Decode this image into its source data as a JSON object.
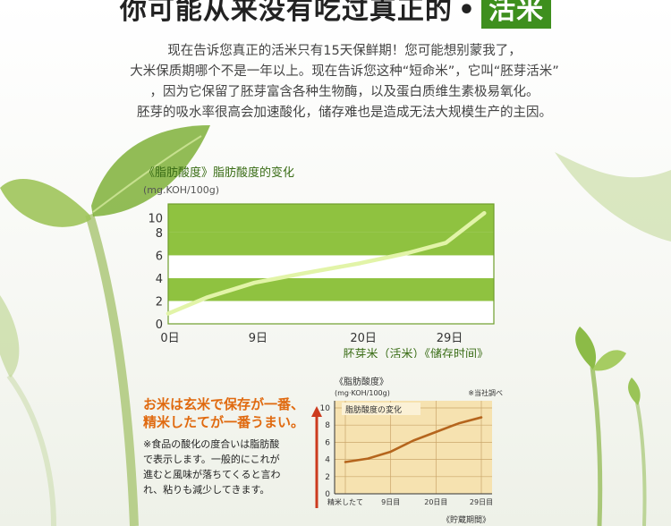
{
  "title": {
    "main": "你可能从来没有吃过真正的",
    "dot": "•",
    "highlight": "活米"
  },
  "paragraph": [
    "现在告诉您真正的活米只有15天保鲜期！您可能想别蒙我了，",
    "大米保质期哪个不是一年以上。现在告诉您这种“短命米”，它叫“胚芽活米”",
    "，因为它保留了胚芽富含各种生物酶，以及蛋白质维生素极易氧化。",
    "胚芽的吸水率很高会加速酸化，储存难也是造成无法大规模生产的主因。"
  ],
  "chart_top": {
    "title": "《脂肪酸度》脂肪酸度的变化",
    "unit": "(mg.KOH/100g)"
  },
  "japanese": {
    "headline": [
      "お米は玄米で保存が一番、",
      "精米したてが一番うまい。"
    ],
    "body": [
      "※食品の酸化の度合いは脂肪酸",
      "で表示します。一般的にこれが",
      "進むと風味が落ちてくると言わ",
      "れ、粘りも減少してきます。"
    ]
  },
  "chart_data": [
    {
      "type": "line",
      "title": "《脂肪酸度》脂肪酸度的变化",
      "ylabel": "(mg.KOH/100g)",
      "xlabel": "胚芽米（活米）《储存时间》",
      "x_categories": [
        "0日",
        "9日",
        "20日",
        "29日"
      ],
      "x": [
        0,
        9,
        20,
        29
      ],
      "y_ticks": [
        0,
        2,
        4,
        6,
        8,
        10
      ],
      "ylim": [
        0,
        10.5
      ],
      "xlim": [
        0,
        34
      ],
      "series": [
        {
          "x": [
            0,
            4,
            9,
            14,
            20,
            25,
            29,
            33
          ],
          "values": [
            0.9,
            2.3,
            3.6,
            4.4,
            5.3,
            6.2,
            7.1,
            9.7
          ]
        }
      ],
      "colors": {
        "band": "#8fc240",
        "line": "#e2f4a8",
        "border": "#6f9e2c"
      },
      "grid": true
    },
    {
      "type": "line",
      "title": "《脂肪酸度》",
      "subtitle": "(mg·KOH/100g)",
      "source_note": "※当社調べ",
      "legend_label": "脂肪酸度の変化",
      "xlabel": "《貯蔵期間》",
      "x_categories": [
        "精米したて",
        "9日目",
        "20日目",
        "29日目"
      ],
      "y_ticks": [
        0,
        2,
        4,
        6,
        8,
        10
      ],
      "ylim": [
        0,
        10
      ],
      "series": [
        {
          "x": [
            0,
            0.5,
            1,
            1.5,
            2,
            2.5,
            3
          ],
          "values": [
            3.7,
            4.1,
            4.9,
            6.2,
            7.2,
            8.2,
            8.9
          ]
        }
      ],
      "colors": {
        "background": "#f6e2b0",
        "line": "#b5651d",
        "arrow": "#cc3b1e"
      },
      "grid": true
    }
  ]
}
